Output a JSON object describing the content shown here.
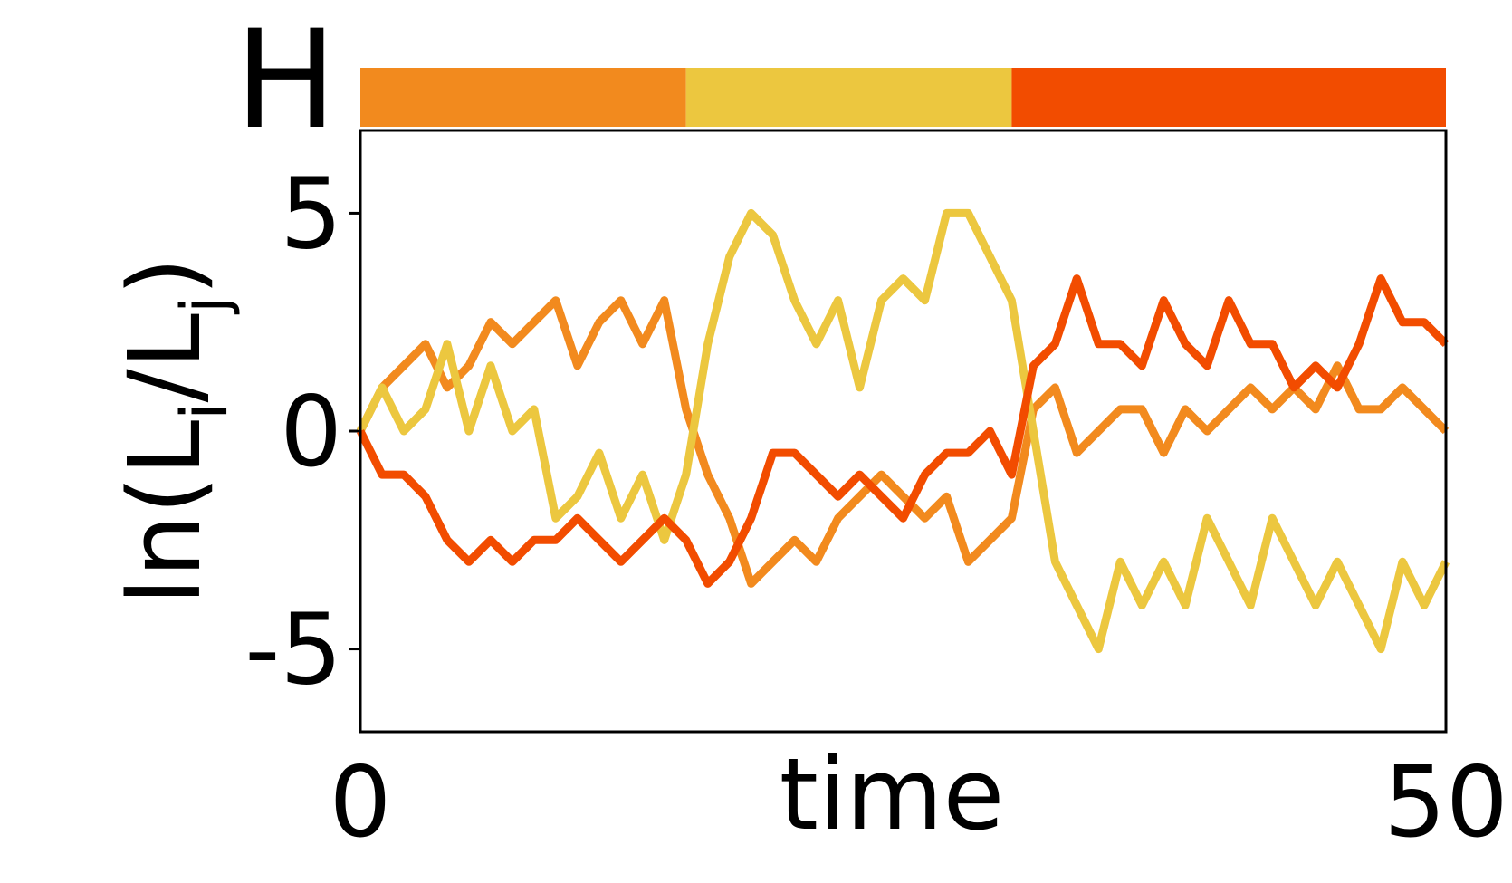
{
  "chart_data": {
    "type": "line",
    "regime_label": "H",
    "regimes": [
      {
        "start": 0,
        "end": 15,
        "color": "#f28a1e"
      },
      {
        "start": 15,
        "end": 30,
        "color": "#ecc73f"
      },
      {
        "start": 30,
        "end": 50,
        "color": "#f24c00"
      }
    ],
    "xlabel": "time",
    "ylabel": [
      "ln(L",
      "i",
      "/L",
      "j",
      ")"
    ],
    "x": [
      0,
      1,
      2,
      3,
      4,
      5,
      6,
      7,
      8,
      9,
      10,
      11,
      12,
      13,
      14,
      15,
      16,
      17,
      18,
      19,
      20,
      21,
      22,
      23,
      24,
      25,
      26,
      27,
      28,
      29,
      30,
      31,
      32,
      33,
      34,
      35,
      36,
      37,
      38,
      39,
      40,
      41,
      42,
      43,
      44,
      45,
      46,
      47,
      48,
      49,
      50
    ],
    "series": [
      {
        "color": "#f28a1e",
        "values": [
          0,
          1,
          1.5,
          2,
          1,
          1.5,
          2.5,
          2,
          2.5,
          3,
          1.5,
          2.5,
          3,
          2,
          3,
          0.5,
          -1,
          -2,
          -3.5,
          -3,
          -2.5,
          -3,
          -2,
          -1.5,
          -1,
          -1.5,
          -2,
          -1.5,
          -3,
          -2.5,
          -2,
          0.5,
          1,
          -0.5,
          0,
          0.5,
          0.5,
          -0.5,
          0.5,
          0,
          0.5,
          1,
          0.5,
          1,
          0.5,
          1.5,
          0.5,
          0.5,
          1,
          0.5,
          0
        ]
      },
      {
        "color": "#ecc73f",
        "values": [
          0,
          1,
          0,
          0.5,
          2,
          0,
          1.5,
          0,
          0.5,
          -2,
          -1.5,
          -0.5,
          -2,
          -1,
          -2.5,
          -1,
          2,
          4,
          5,
          4.5,
          3,
          2,
          3,
          1,
          3,
          3.5,
          3,
          5,
          5,
          4,
          3,
          0,
          -3,
          -4,
          -5,
          -3,
          -4,
          -3,
          -4,
          -2,
          -3,
          -4,
          -2,
          -3,
          -4,
          -3,
          -4,
          -5,
          -3,
          -4,
          -3
        ]
      },
      {
        "color": "#f24c00",
        "values": [
          0,
          -1,
          -1,
          -1.5,
          -2.5,
          -3,
          -2.5,
          -3,
          -2.5,
          -2.5,
          -2,
          -2.5,
          -3,
          -2.5,
          -2,
          -2.5,
          -3.5,
          -3,
          -2,
          -0.5,
          -0.5,
          -1,
          -1.5,
          -1,
          -1.5,
          -2,
          -1,
          -0.5,
          -0.5,
          0,
          -1,
          1.5,
          2,
          3.5,
          2,
          2,
          1.5,
          3,
          2,
          1.5,
          3,
          2,
          2,
          1,
          1.5,
          1,
          2,
          3.5,
          2.5,
          2.5,
          2
        ]
      }
    ],
    "xlim": [
      0,
      50
    ],
    "xticks": [
      0,
      50
    ],
    "ylim": [
      -6.9,
      6.9
    ],
    "yticks": [
      -5,
      0,
      5
    ]
  }
}
